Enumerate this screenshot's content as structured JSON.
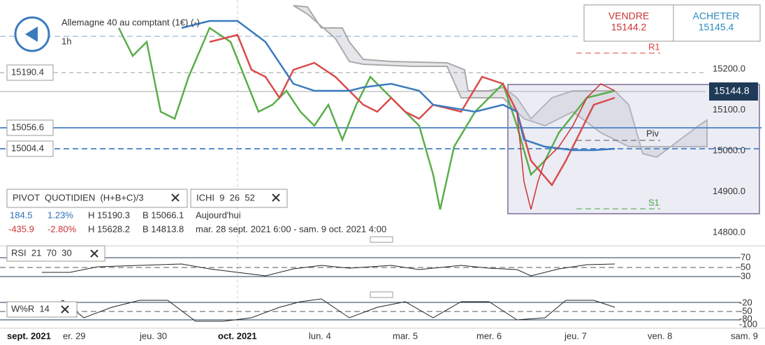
{
  "header": {
    "instrument": "Allemagne 40 au comptant (1€) (-)",
    "timeframe": "1h"
  },
  "trade": {
    "sell": {
      "label": "VENDRE",
      "price": "15144.2"
    },
    "buy": {
      "label": "ACHETER",
      "price": "15145.4"
    }
  },
  "price_axis": [
    "15200.0",
    "15100.0",
    "15000.0",
    "14900.0",
    "14800.0"
  ],
  "levels": {
    "high": "15190.4",
    "pivot": "15056.6",
    "low": "15004.4",
    "current": "15144.8"
  },
  "pivot_labels": {
    "r1": "R1",
    "piv": "Piv",
    "s1": "S1"
  },
  "indicators": {
    "pivot": "PIVOT  QUOTIDIEN  (H+B+C)/3",
    "ichi": "ICHI  9  26  52"
  },
  "stats": [
    [
      "184.5",
      "1.23%",
      "H 15190.3",
      "B 15066.1",
      "Aujourd'hui"
    ],
    [
      "-435.9",
      "-2.80%",
      "H 15628.2",
      "B 14813.8",
      "mar. 28 sept. 2021 6:00 - sam. 9 oct. 2021 4:00"
    ]
  ],
  "rsi": {
    "label": "RSI  21  70  30",
    "ticks": [
      "70",
      "50",
      "30"
    ]
  },
  "wr": {
    "label": "W%R  14",
    "ticks": [
      "-20",
      "-50",
      "-80",
      "-100"
    ]
  },
  "time_axis": [
    "sept. 2021",
    "er. 29",
    "jeu. 30",
    "oct. 2021",
    "lun. 4",
    "mar. 5",
    "mer. 6",
    "jeu. 7",
    "ven. 8",
    "sam. 9"
  ]
}
